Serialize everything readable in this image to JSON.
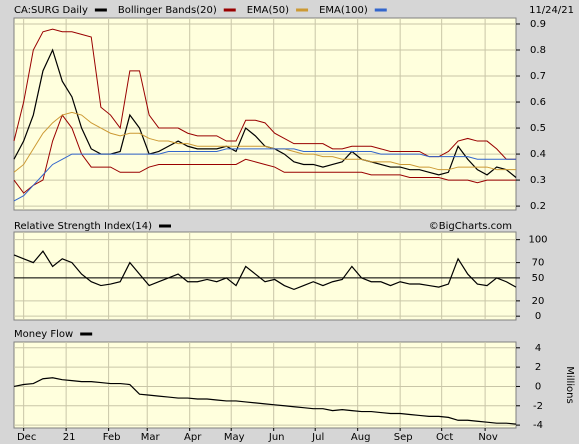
{
  "chart_data": [
    {
      "type": "line",
      "date": "11/24/21",
      "xlim": [
        0,
        52
      ],
      "ylim": [
        0.185,
        0.923
      ],
      "yticks": [
        0.2,
        0.3,
        0.4,
        0.5,
        0.6,
        0.7,
        0.8,
        0.9
      ],
      "grid": true,
      "series": [
        {
          "name": "CA:SURG Daily",
          "color": "#000000",
          "values": [
            0.38,
            0.45,
            0.55,
            0.72,
            0.8,
            0.68,
            0.62,
            0.5,
            0.42,
            0.4,
            0.4,
            0.41,
            0.55,
            0.5,
            0.4,
            0.41,
            0.43,
            0.45,
            0.43,
            0.42,
            0.42,
            0.42,
            0.43,
            0.41,
            0.5,
            0.47,
            0.43,
            0.42,
            0.4,
            0.37,
            0.36,
            0.36,
            0.35,
            0.36,
            0.37,
            0.41,
            0.38,
            0.37,
            0.36,
            0.35,
            0.35,
            0.34,
            0.34,
            0.33,
            0.32,
            0.33,
            0.43,
            0.38,
            0.34,
            0.32,
            0.35,
            0.34,
            0.31
          ]
        },
        {
          "name": "Bollinger Bands(20)",
          "color": "#990000",
          "upper": [
            0.45,
            0.6,
            0.8,
            0.87,
            0.88,
            0.87,
            0.87,
            0.86,
            0.85,
            0.58,
            0.55,
            0.5,
            0.72,
            0.72,
            0.55,
            0.5,
            0.5,
            0.5,
            0.48,
            0.47,
            0.47,
            0.47,
            0.45,
            0.45,
            0.53,
            0.53,
            0.52,
            0.48,
            0.46,
            0.44,
            0.44,
            0.44,
            0.44,
            0.42,
            0.42,
            0.43,
            0.43,
            0.43,
            0.42,
            0.41,
            0.41,
            0.41,
            0.41,
            0.39,
            0.39,
            0.41,
            0.45,
            0.46,
            0.45,
            0.45,
            0.42,
            0.38,
            0.38
          ],
          "lower": [
            0.3,
            0.25,
            0.28,
            0.3,
            0.45,
            0.55,
            0.5,
            0.4,
            0.35,
            0.35,
            0.35,
            0.33,
            0.33,
            0.33,
            0.35,
            0.36,
            0.36,
            0.36,
            0.36,
            0.36,
            0.36,
            0.36,
            0.36,
            0.36,
            0.38,
            0.37,
            0.36,
            0.35,
            0.33,
            0.33,
            0.33,
            0.33,
            0.33,
            0.33,
            0.33,
            0.33,
            0.33,
            0.32,
            0.32,
            0.32,
            0.32,
            0.31,
            0.31,
            0.31,
            0.31,
            0.3,
            0.3,
            0.3,
            0.29,
            0.3,
            0.3,
            0.3,
            0.3
          ]
        },
        {
          "name": "EMA(50)",
          "color": "#cc9933",
          "values": [
            0.33,
            0.36,
            0.42,
            0.48,
            0.52,
            0.55,
            0.56,
            0.55,
            0.52,
            0.5,
            0.48,
            0.47,
            0.48,
            0.48,
            0.46,
            0.45,
            0.45,
            0.44,
            0.44,
            0.43,
            0.43,
            0.43,
            0.43,
            0.43,
            0.43,
            0.43,
            0.43,
            0.42,
            0.42,
            0.41,
            0.4,
            0.4,
            0.39,
            0.39,
            0.38,
            0.38,
            0.38,
            0.37,
            0.37,
            0.37,
            0.36,
            0.36,
            0.35,
            0.35,
            0.34,
            0.34,
            0.35,
            0.35,
            0.35,
            0.35,
            0.34,
            0.34,
            0.34
          ]
        },
        {
          "name": "EMA(100)",
          "color": "#3366cc",
          "values": [
            0.22,
            0.24,
            0.28,
            0.32,
            0.36,
            0.38,
            0.4,
            0.4,
            0.4,
            0.4,
            0.4,
            0.4,
            0.4,
            0.4,
            0.4,
            0.4,
            0.41,
            0.41,
            0.41,
            0.41,
            0.41,
            0.41,
            0.42,
            0.42,
            0.42,
            0.42,
            0.42,
            0.42,
            0.42,
            0.42,
            0.41,
            0.41,
            0.41,
            0.41,
            0.41,
            0.41,
            0.41,
            0.41,
            0.4,
            0.4,
            0.4,
            0.4,
            0.4,
            0.39,
            0.39,
            0.39,
            0.39,
            0.39,
            0.38,
            0.38,
            0.38,
            0.38,
            0.38
          ]
        }
      ]
    },
    {
      "type": "line",
      "watermark": "©BigCharts.com",
      "xlim": [
        0,
        52
      ],
      "ylim": [
        -5,
        110
      ],
      "yticks": [
        0,
        20,
        50,
        70,
        100
      ],
      "grid": true,
      "reference_line": 50,
      "series": [
        {
          "name": "Relative Strength Index(14)",
          "color": "#000000",
          "values": [
            80,
            75,
            70,
            85,
            65,
            75,
            70,
            55,
            45,
            40,
            42,
            45,
            70,
            55,
            40,
            45,
            50,
            55,
            45,
            45,
            48,
            45,
            50,
            40,
            65,
            55,
            45,
            48,
            40,
            35,
            40,
            45,
            40,
            45,
            48,
            65,
            50,
            45,
            45,
            40,
            45,
            42,
            42,
            40,
            38,
            42,
            75,
            55,
            42,
            40,
            50,
            45,
            38
          ]
        }
      ]
    },
    {
      "type": "line",
      "ylabel": "Millions",
      "xlim": [
        0,
        52
      ],
      "ylim": [
        -4.3,
        4.6
      ],
      "yticks": [
        -4,
        -2,
        0,
        2,
        4
      ],
      "grid": true,
      "xticks": [
        {
          "value": 1.0,
          "label": "Dec"
        },
        {
          "value": 5.4,
          "label": "21"
        },
        {
          "value": 9.8,
          "label": "Feb"
        },
        {
          "value": 13.8,
          "label": "Mar"
        },
        {
          "value": 18.2,
          "label": "Apr"
        },
        {
          "value": 22.5,
          "label": "May"
        },
        {
          "value": 26.9,
          "label": "Jun"
        },
        {
          "value": 31.2,
          "label": "Jul"
        },
        {
          "value": 35.6,
          "label": "Aug"
        },
        {
          "value": 40.0,
          "label": "Sep"
        },
        {
          "value": 44.3,
          "label": "Oct"
        },
        {
          "value": 48.8,
          "label": "Nov"
        }
      ],
      "series": [
        {
          "name": "Money Flow",
          "color": "#000000",
          "values": [
            0,
            0.2,
            0.3,
            0.8,
            0.9,
            0.7,
            0.6,
            0.5,
            0.5,
            0.4,
            0.3,
            0.3,
            0.2,
            -0.8,
            -0.9,
            -1.0,
            -1.1,
            -1.2,
            -1.2,
            -1.3,
            -1.3,
            -1.4,
            -1.5,
            -1.5,
            -1.6,
            -1.7,
            -1.8,
            -1.9,
            -2.0,
            -2.1,
            -2.2,
            -2.3,
            -2.3,
            -2.5,
            -2.4,
            -2.5,
            -2.6,
            -2.6,
            -2.7,
            -2.8,
            -2.8,
            -2.9,
            -3.0,
            -3.1,
            -3.1,
            -3.2,
            -3.5,
            -3.5,
            -3.6,
            -3.7,
            -3.8,
            -3.8,
            -3.9
          ]
        }
      ]
    }
  ]
}
